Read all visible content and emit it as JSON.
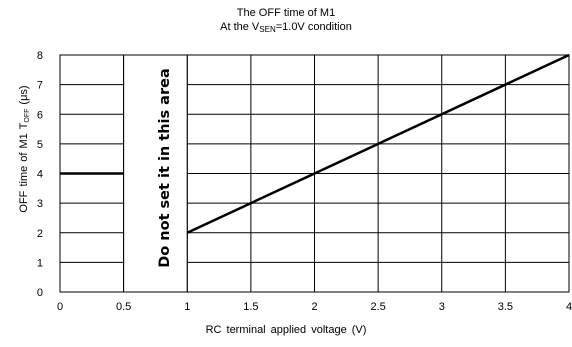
{
  "chart_data": {
    "type": "line",
    "title_line1": "The OFF time of M1",
    "title_line2_prefix": "At the V",
    "title_line2_sub": "SEN",
    "title_line2_suffix": "=1.0V condition",
    "xlabel": "RC terminal applied voltage  (V)",
    "ylabel_prefix": "OFF time of M1 T",
    "ylabel_sub": "OFF",
    "ylabel_suffix": "  (μs)",
    "xlim": [
      0,
      4
    ],
    "ylim": [
      0,
      8
    ],
    "x_ticks": [
      "0",
      "0.5",
      "1",
      "1.5",
      "2",
      "2.5",
      "3",
      "3.5",
      "4"
    ],
    "y_ticks": [
      "0",
      "1",
      "2",
      "3",
      "4",
      "5",
      "6",
      "7",
      "8"
    ],
    "grid": true,
    "series": [
      {
        "x": [
          0,
          0.5
        ],
        "y": [
          4,
          4
        ]
      },
      {
        "x": [
          1,
          4
        ],
        "y": [
          2,
          8
        ]
      }
    ],
    "excluded_region": {
      "x": [
        0.5,
        1
      ]
    },
    "annotation": "Do not set it in this area",
    "line_color": "#000000",
    "grid_color": "#000000"
  }
}
